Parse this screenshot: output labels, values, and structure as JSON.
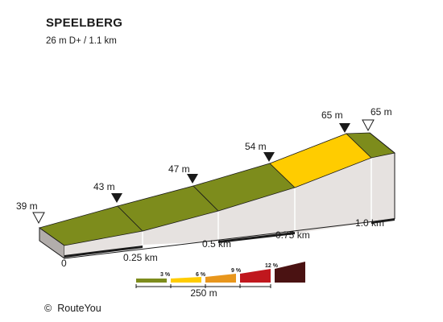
{
  "header": {
    "title": "SPEELBERG",
    "subtitle": "26 m D+ / 1.1 km"
  },
  "elevation_markers": [
    {
      "label": "39 m",
      "style": "outline"
    },
    {
      "label": "43 m",
      "style": "filled"
    },
    {
      "label": "47 m",
      "style": "filled"
    },
    {
      "label": "54 m",
      "style": "filled"
    },
    {
      "label": "65 m",
      "style": "filled"
    },
    {
      "label": "65 m",
      "style": "outline"
    }
  ],
  "distance_labels": [
    "0",
    "0.25 km",
    "0.5 km",
    "0.75 km",
    "1.0 km"
  ],
  "segments": [
    {
      "grade_class": "3 %",
      "color": "#7d8c1c"
    },
    {
      "grade_class": "3 %",
      "color": "#7d8c1c"
    },
    {
      "grade_class": "3 %",
      "color": "#7d8c1c"
    },
    {
      "grade_class": "6 %",
      "color": "#ffcc00"
    },
    {
      "grade_class": "3 %",
      "color": "#7d8c1c"
    }
  ],
  "legend": {
    "items": [
      {
        "label": "3 %",
        "color": "#7d8c1c"
      },
      {
        "label": "6 %",
        "color": "#ffcc00"
      },
      {
        "label": "9 %",
        "color": "#e8961c"
      },
      {
        "label": "12 %",
        "color": "#c0171d"
      },
      {
        "label": "",
        "color": "#4a1212"
      }
    ],
    "scale_label": "250 m"
  },
  "footer": {
    "copyright_symbol": "©",
    "brand": "RouteYou"
  },
  "colors": {
    "side_face": "#e6e2e0",
    "front_face": "#b2adab",
    "outline": "#1a1a1a"
  }
}
